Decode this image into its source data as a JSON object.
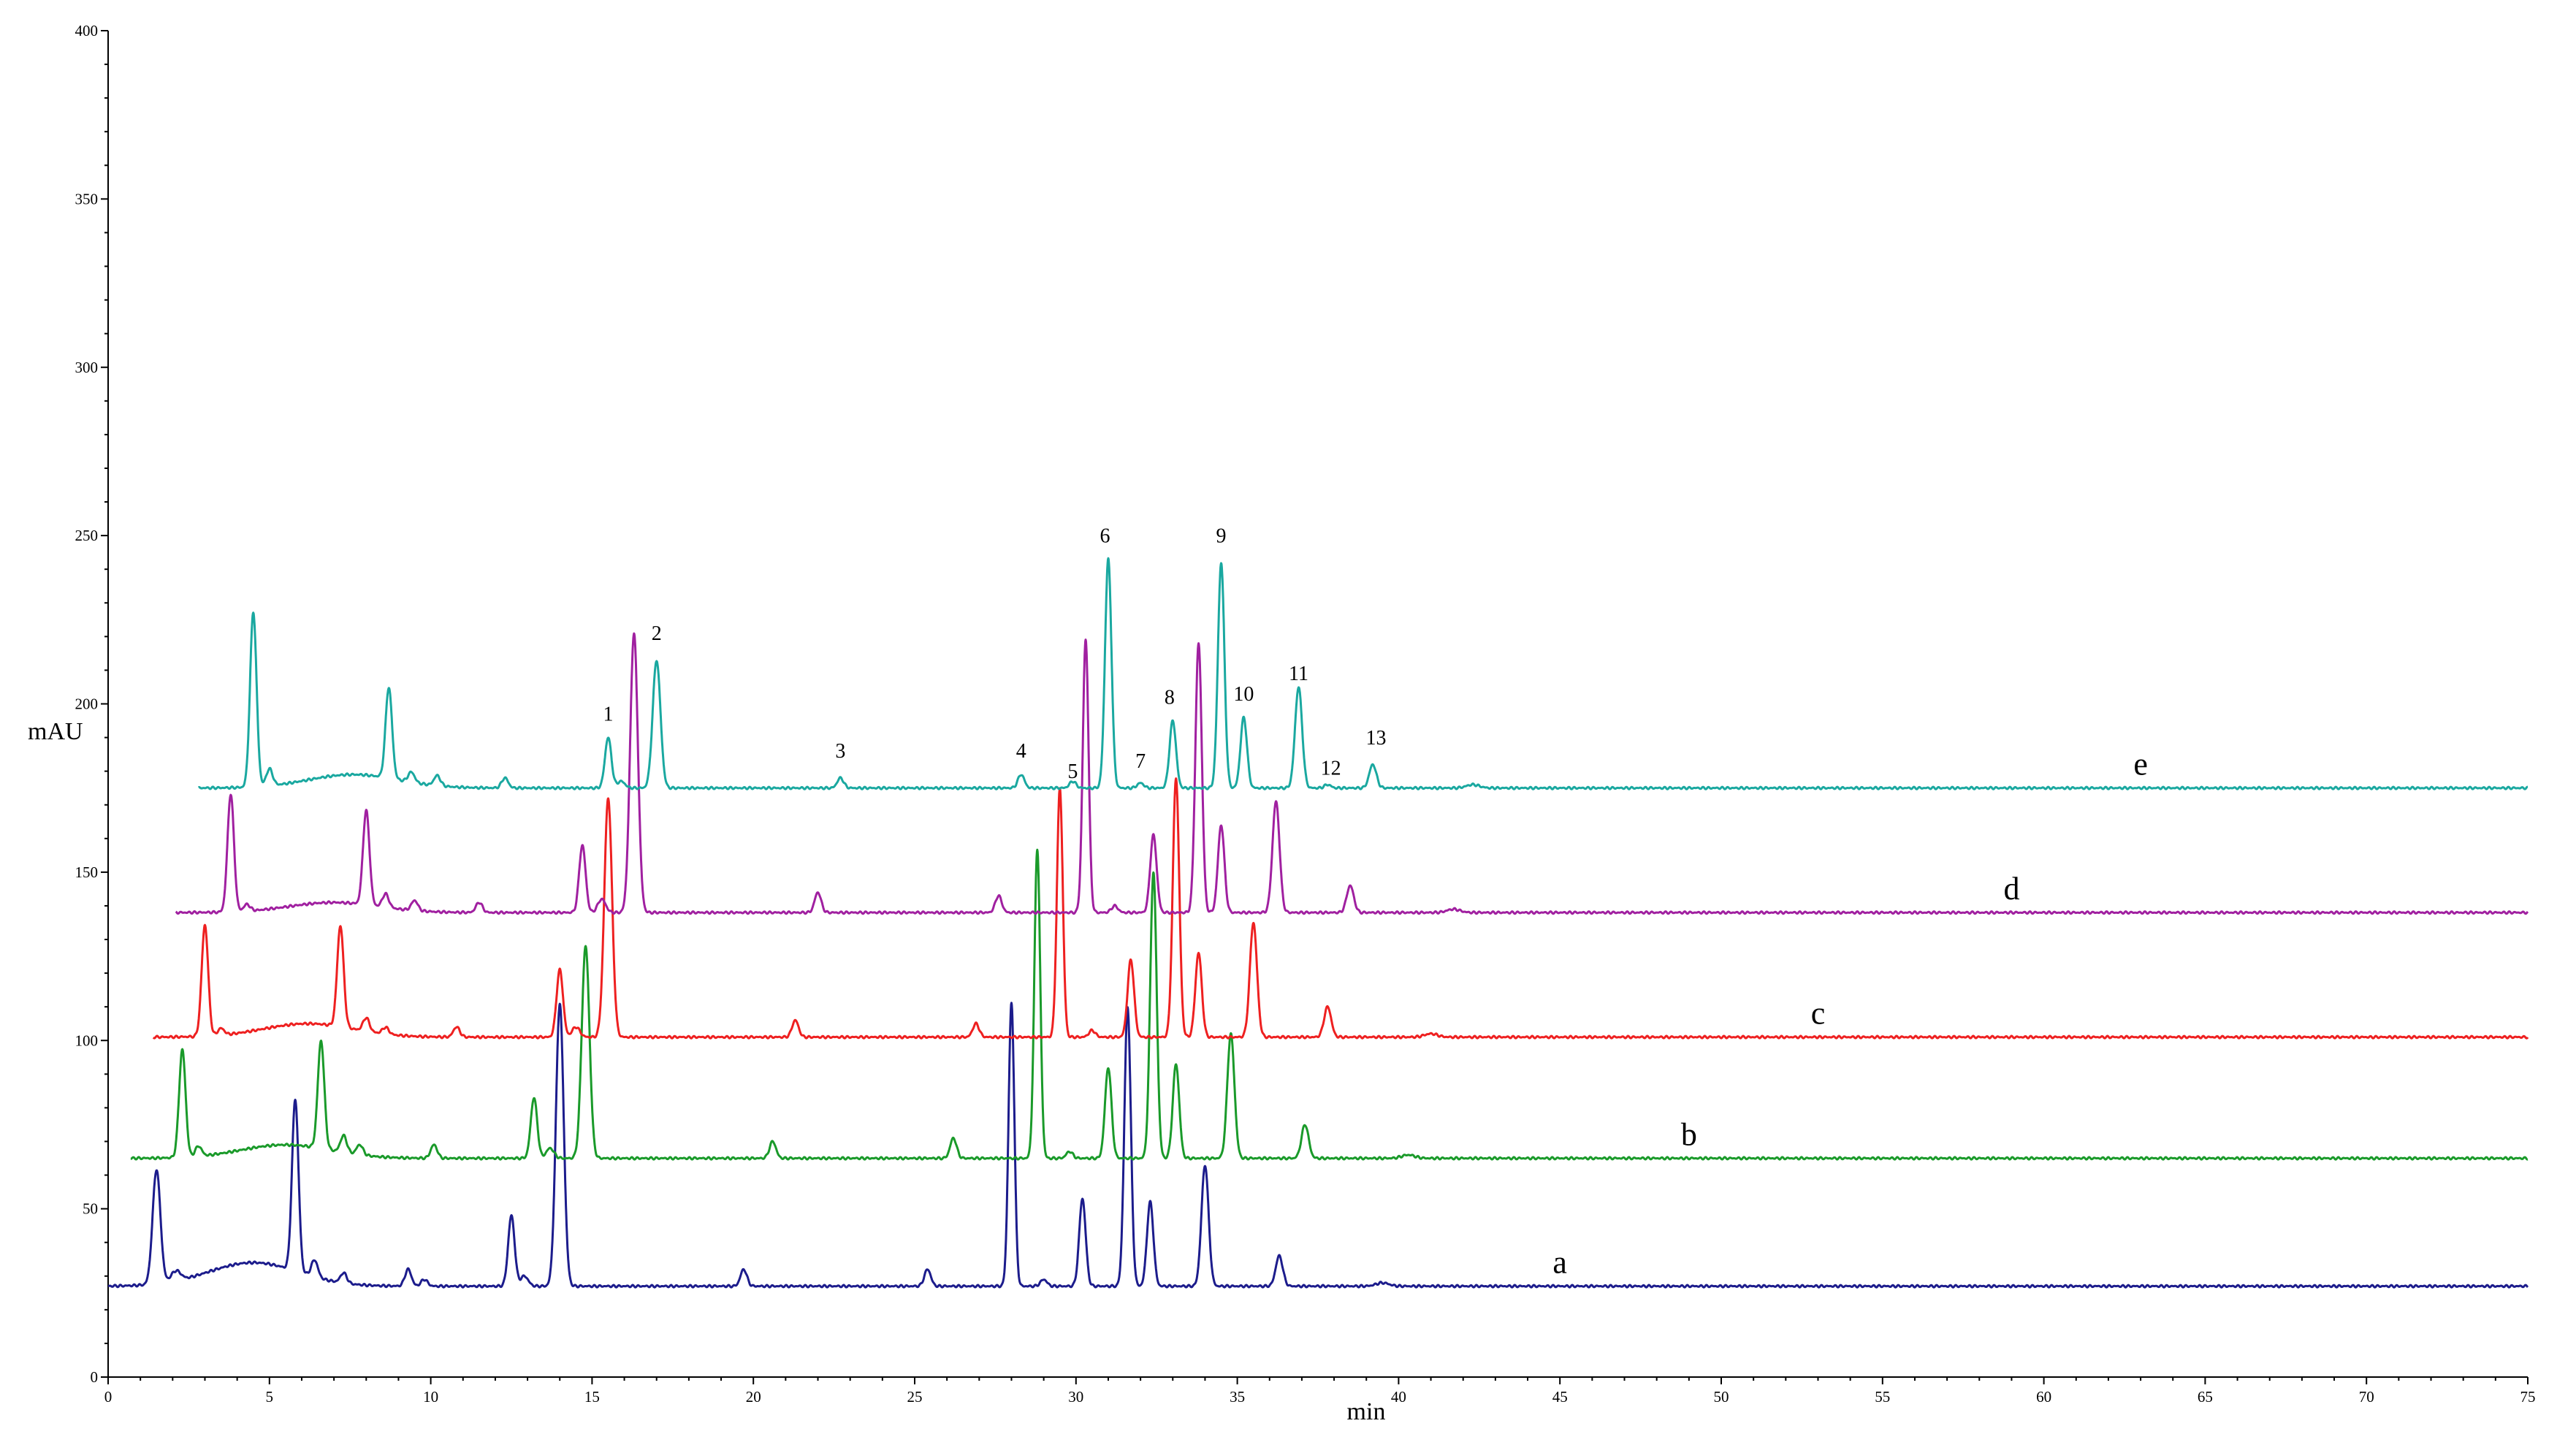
{
  "chart_data": {
    "type": "line",
    "title": "",
    "xlabel": "min",
    "ylabel": "mAU",
    "xlim": [
      0,
      75
    ],
    "ylim": [
      0,
      400
    ],
    "grid": false,
    "legend": "none",
    "x_ticks": [
      0,
      5,
      10,
      15,
      20,
      25,
      30,
      35,
      40,
      45,
      50,
      55,
      60,
      65,
      70,
      75
    ],
    "x_tick_labels": [
      "0",
      "5",
      "10",
      "15",
      "20",
      "25",
      "30",
      "35",
      "40",
      "45",
      "50",
      "55",
      "60",
      "65",
      "70",
      "75"
    ],
    "y_ticks": [
      0,
      50,
      100,
      150,
      200,
      250,
      300,
      350,
      400
    ],
    "y_tick_labels": [
      "0",
      "50",
      "100",
      "150",
      "200",
      "250",
      "300",
      "350",
      "400"
    ],
    "series": [
      {
        "name": "a",
        "color": "#1c1c8c",
        "baseline": 27,
        "x_start": 0,
        "x_label": 45,
        "peaks": [
          {
            "t": 1.5,
            "h": 34,
            "w": 0.12
          },
          {
            "t": 2.1,
            "h": 3,
            "w": 0.15
          },
          {
            "t": 4.5,
            "h": 7,
            "w": 1.4
          },
          {
            "t": 5.8,
            "h": 51,
            "w": 0.1
          },
          {
            "t": 6.4,
            "h": 5,
            "w": 0.1
          },
          {
            "t": 7.3,
            "h": 3,
            "w": 0.1
          },
          {
            "t": 9.3,
            "h": 5,
            "w": 0.1
          },
          {
            "t": 9.8,
            "h": 2,
            "w": 0.1
          },
          {
            "t": 12.5,
            "h": 21,
            "w": 0.1
          },
          {
            "t": 12.9,
            "h": 3,
            "w": 0.12
          },
          {
            "t": 14.0,
            "h": 84,
            "w": 0.12
          },
          {
            "t": 19.7,
            "h": 5,
            "w": 0.1
          },
          {
            "t": 25.4,
            "h": 5,
            "w": 0.1
          },
          {
            "t": 28.0,
            "h": 84,
            "w": 0.09
          },
          {
            "t": 29.0,
            "h": 2,
            "w": 0.1
          },
          {
            "t": 30.2,
            "h": 26,
            "w": 0.1
          },
          {
            "t": 31.6,
            "h": 83,
            "w": 0.1
          },
          {
            "t": 32.3,
            "h": 25,
            "w": 0.1
          },
          {
            "t": 34.0,
            "h": 36,
            "w": 0.11
          },
          {
            "t": 36.3,
            "h": 9,
            "w": 0.11
          },
          {
            "t": 39.5,
            "h": 1,
            "w": 0.2
          }
        ]
      },
      {
        "name": "b",
        "color": "#1a9a2a",
        "baseline": 65,
        "x_start": 0.7,
        "x_label": 49,
        "peaks": [
          {
            "t": 2.3,
            "h": 32,
            "w": 0.1
          },
          {
            "t": 2.8,
            "h": 3,
            "w": 0.1
          },
          {
            "t": 5.5,
            "h": 4,
            "w": 1.4
          },
          {
            "t": 6.6,
            "h": 32,
            "w": 0.1
          },
          {
            "t": 7.3,
            "h": 5,
            "w": 0.1
          },
          {
            "t": 7.8,
            "h": 3,
            "w": 0.1
          },
          {
            "t": 10.1,
            "h": 4,
            "w": 0.1
          },
          {
            "t": 13.2,
            "h": 18,
            "w": 0.1
          },
          {
            "t": 13.7,
            "h": 3,
            "w": 0.12
          },
          {
            "t": 14.8,
            "h": 63,
            "w": 0.12
          },
          {
            "t": 20.6,
            "h": 5,
            "w": 0.1
          },
          {
            "t": 26.2,
            "h": 6,
            "w": 0.1
          },
          {
            "t": 28.8,
            "h": 92,
            "w": 0.09
          },
          {
            "t": 29.8,
            "h": 2,
            "w": 0.1
          },
          {
            "t": 31.0,
            "h": 27,
            "w": 0.1
          },
          {
            "t": 32.4,
            "h": 85,
            "w": 0.1
          },
          {
            "t": 33.1,
            "h": 28,
            "w": 0.1
          },
          {
            "t": 34.8,
            "h": 37,
            "w": 0.11
          },
          {
            "t": 37.1,
            "h": 10,
            "w": 0.11
          },
          {
            "t": 40.3,
            "h": 1,
            "w": 0.2
          }
        ]
      },
      {
        "name": "c",
        "color": "#ee2020",
        "baseline": 101,
        "x_start": 1.4,
        "x_label": 53,
        "peaks": [
          {
            "t": 3.0,
            "h": 33,
            "w": 0.1
          },
          {
            "t": 3.5,
            "h": 2,
            "w": 0.1
          },
          {
            "t": 6.2,
            "h": 4,
            "w": 1.4
          },
          {
            "t": 7.2,
            "h": 30,
            "w": 0.1
          },
          {
            "t": 8.0,
            "h": 4,
            "w": 0.1
          },
          {
            "t": 8.6,
            "h": 2,
            "w": 0.1
          },
          {
            "t": 10.8,
            "h": 3,
            "w": 0.1
          },
          {
            "t": 14.0,
            "h": 20,
            "w": 0.1
          },
          {
            "t": 14.5,
            "h": 3,
            "w": 0.12
          },
          {
            "t": 15.5,
            "h": 71,
            "w": 0.12
          },
          {
            "t": 21.3,
            "h": 5,
            "w": 0.1
          },
          {
            "t": 26.9,
            "h": 4,
            "w": 0.1
          },
          {
            "t": 29.5,
            "h": 74,
            "w": 0.09
          },
          {
            "t": 30.5,
            "h": 2,
            "w": 0.1
          },
          {
            "t": 31.7,
            "h": 23,
            "w": 0.1
          },
          {
            "t": 33.1,
            "h": 77,
            "w": 0.1
          },
          {
            "t": 33.8,
            "h": 25,
            "w": 0.1
          },
          {
            "t": 35.5,
            "h": 34,
            "w": 0.11
          },
          {
            "t": 37.8,
            "h": 9,
            "w": 0.11
          },
          {
            "t": 41.0,
            "h": 1,
            "w": 0.2
          }
        ]
      },
      {
        "name": "d",
        "color": "#a020a0",
        "baseline": 138,
        "x_start": 2.1,
        "x_label": 59,
        "peaks": [
          {
            "t": 3.8,
            "h": 35,
            "w": 0.1
          },
          {
            "t": 4.3,
            "h": 2,
            "w": 0.1
          },
          {
            "t": 7.0,
            "h": 3,
            "w": 1.4
          },
          {
            "t": 8.0,
            "h": 28,
            "w": 0.1
          },
          {
            "t": 8.6,
            "h": 4,
            "w": 0.1
          },
          {
            "t": 9.5,
            "h": 3,
            "w": 0.1
          },
          {
            "t": 11.5,
            "h": 3,
            "w": 0.1
          },
          {
            "t": 14.7,
            "h": 20,
            "w": 0.1
          },
          {
            "t": 15.3,
            "h": 4,
            "w": 0.12
          },
          {
            "t": 16.3,
            "h": 83,
            "w": 0.12
          },
          {
            "t": 22.0,
            "h": 6,
            "w": 0.1
          },
          {
            "t": 27.6,
            "h": 5,
            "w": 0.1
          },
          {
            "t": 30.3,
            "h": 81,
            "w": 0.09
          },
          {
            "t": 31.2,
            "h": 2,
            "w": 0.1
          },
          {
            "t": 32.4,
            "h": 23,
            "w": 0.1
          },
          {
            "t": 33.8,
            "h": 80,
            "w": 0.1
          },
          {
            "t": 34.5,
            "h": 26,
            "w": 0.1
          },
          {
            "t": 36.2,
            "h": 33,
            "w": 0.11
          },
          {
            "t": 38.5,
            "h": 8,
            "w": 0.11
          },
          {
            "t": 41.7,
            "h": 1,
            "w": 0.2
          }
        ]
      },
      {
        "name": "e",
        "color": "#1aa8a0",
        "baseline": 175,
        "x_start": 2.8,
        "x_label": 63,
        "peaks": [
          {
            "t": 4.5,
            "h": 52,
            "w": 0.1
          },
          {
            "t": 5.0,
            "h": 5,
            "w": 0.1
          },
          {
            "t": 7.6,
            "h": 4,
            "w": 1.4
          },
          {
            "t": 8.7,
            "h": 27,
            "w": 0.1
          },
          {
            "t": 9.4,
            "h": 3,
            "w": 0.1
          },
          {
            "t": 10.2,
            "h": 3,
            "w": 0.1
          },
          {
            "t": 12.3,
            "h": 3,
            "w": 0.1
          },
          {
            "t": 15.5,
            "h": 15,
            "w": 0.1
          },
          {
            "t": 15.9,
            "h": 2,
            "w": 0.12
          },
          {
            "t": 17.0,
            "h": 38,
            "w": 0.12
          },
          {
            "t": 22.7,
            "h": 3,
            "w": 0.1
          },
          {
            "t": 28.3,
            "h": 4,
            "w": 0.1
          },
          {
            "t": 29.9,
            "h": 2,
            "w": 0.1
          },
          {
            "t": 31.0,
            "h": 68,
            "w": 0.1
          },
          {
            "t": 32.0,
            "h": 1.5,
            "w": 0.1
          },
          {
            "t": 33.0,
            "h": 20,
            "w": 0.1
          },
          {
            "t": 34.5,
            "h": 67,
            "w": 0.1
          },
          {
            "t": 35.2,
            "h": 21,
            "w": 0.1
          },
          {
            "t": 36.9,
            "h": 30,
            "w": 0.11
          },
          {
            "t": 37.8,
            "h": 1,
            "w": 0.1
          },
          {
            "t": 39.2,
            "h": 7,
            "w": 0.11
          },
          {
            "t": 42.3,
            "h": 1,
            "w": 0.2
          }
        ]
      }
    ],
    "annotations": [
      {
        "text": "1",
        "x": 15.5,
        "y": 195
      },
      {
        "text": "2",
        "x": 17.0,
        "y": 219
      },
      {
        "text": "3",
        "x": 22.7,
        "y": 184
      },
      {
        "text": "4",
        "x": 28.3,
        "y": 184
      },
      {
        "text": "5",
        "x": 29.9,
        "y": 178
      },
      {
        "text": "7",
        "x": 32.0,
        "y": 181
      },
      {
        "text": "6",
        "x": 30.9,
        "y": 248
      },
      {
        "text": "8",
        "x": 32.9,
        "y": 200
      },
      {
        "text": "9",
        "x": 34.5,
        "y": 248
      },
      {
        "text": "10",
        "x": 35.2,
        "y": 201
      },
      {
        "text": "11",
        "x": 36.9,
        "y": 207
      },
      {
        "text": "12",
        "x": 37.9,
        "y": 179
      },
      {
        "text": "13",
        "x": 39.3,
        "y": 188
      }
    ]
  }
}
